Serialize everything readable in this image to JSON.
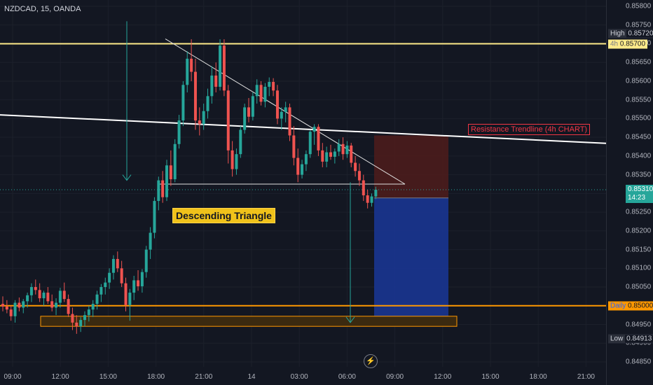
{
  "header": {
    "symbol": "NZDCAD, 15, OANDA"
  },
  "annotations": {
    "pattern_label": "Descending Triangle",
    "resistance_label": "Resistance Trendline (4h CHART)"
  },
  "price_labels": {
    "high_tag": "High",
    "high_value": "0.85720",
    "level_4h_tag": "4h",
    "level_4h_value": "0.85700",
    "current_value": "0.85310",
    "countdown": "14:23",
    "daily_tag": "Daily",
    "daily_value": "0.85000",
    "low_tag": "Low",
    "low_value": "0.84913"
  },
  "icons": {
    "replay": "lightning-icon"
  },
  "colors": {
    "background": "#131722",
    "up": "#26a69a",
    "down": "#ef5350",
    "yellow_level": "#ffeb8a",
    "orange_level": "#ff9800",
    "stop_zone": "#4b1c1c",
    "target_zone": "#1a3591"
  },
  "chart_data": {
    "type": "candlestick",
    "x_ticks": [
      "09:00",
      "12:00",
      "15:00",
      "18:00",
      "21:00",
      "14",
      "03:00",
      "06:00",
      "09:00",
      "12:00",
      "15:00",
      "18:00",
      "21:00"
    ],
    "y_ticks": [
      "0.85800",
      "0.85750",
      "0.85700",
      "0.85650",
      "0.85600",
      "0.85550",
      "0.85500",
      "0.85450",
      "0.85400",
      "0.85350",
      "0.85300",
      "0.85250",
      "0.85200",
      "0.85150",
      "0.85100",
      "0.85050",
      "0.85000",
      "0.84950",
      "0.84900",
      "0.84850"
    ],
    "ylim": [
      0.8482,
      0.8584
    ],
    "levels": [
      {
        "name": "4h",
        "price": 0.857,
        "color": "#ffeb8a"
      },
      {
        "name": "Daily",
        "price": 0.85,
        "color": "#ff9800"
      }
    ],
    "resistance_trendline": {
      "start": [
        0,
        0.8551
      ],
      "end": [
        888,
        0.85432
      ]
    },
    "triangle": {
      "apex": [
        236,
        0.85713
      ],
      "upper_end": [
        578,
        0.85325
      ],
      "base_start": [
        226,
        0.85325
      ],
      "base_end": [
        578,
        0.85325
      ]
    },
    "support_zone": {
      "x": [
        58,
        652
      ],
      "price": [
        0.84972,
        0.84945
      ]
    },
    "position": {
      "x": [
        534,
        640
      ],
      "entry": 0.85288,
      "stop": 0.85455,
      "target": 0.84955
    },
    "arrows": [
      {
        "x": 181,
        "from": 0.8576,
        "to": 0.85335,
        "color": "#26a69a"
      },
      {
        "x": 500,
        "from": 0.8533,
        "to": 0.84955,
        "color": "#26a69a"
      }
    ],
    "candles": [
      [
        0.85005,
        0.85025,
        0.84985,
        0.84998
      ],
      [
        0.84998,
        0.85015,
        0.8498,
        0.8499
      ],
      [
        0.8499,
        0.85,
        0.8496,
        0.84972
      ],
      [
        0.84972,
        0.85015,
        0.84955,
        0.85008
      ],
      [
        0.85008,
        0.85022,
        0.84985,
        0.84995
      ],
      [
        0.84995,
        0.85018,
        0.8498,
        0.85012
      ],
      [
        0.85012,
        0.85035,
        0.84995,
        0.85028
      ],
      [
        0.85028,
        0.8506,
        0.8501,
        0.8505
      ],
      [
        0.8505,
        0.8507,
        0.8503,
        0.85042
      ],
      [
        0.85042,
        0.8506,
        0.8501,
        0.8502
      ],
      [
        0.8502,
        0.8504,
        0.85,
        0.85035
      ],
      [
        0.85035,
        0.8505,
        0.85005,
        0.85012
      ],
      [
        0.85012,
        0.8503,
        0.84985,
        0.84995
      ],
      [
        0.84995,
        0.8502,
        0.84975,
        0.85008
      ],
      [
        0.85008,
        0.85048,
        0.84995,
        0.8504
      ],
      [
        0.8504,
        0.85062,
        0.8501,
        0.85018
      ],
      [
        0.85018,
        0.8503,
        0.8497,
        0.84978
      ],
      [
        0.84978,
        0.84995,
        0.84935,
        0.84955
      ],
      [
        0.84955,
        0.84975,
        0.84925,
        0.84945
      ],
      [
        0.84945,
        0.8497,
        0.8493,
        0.84962
      ],
      [
        0.84962,
        0.84985,
        0.84945,
        0.84975
      ],
      [
        0.84975,
        0.85,
        0.84958,
        0.8499
      ],
      [
        0.8499,
        0.85015,
        0.8497,
        0.85005
      ],
      [
        0.85005,
        0.8504,
        0.8499,
        0.8503
      ],
      [
        0.8503,
        0.85058,
        0.8501,
        0.8505
      ],
      [
        0.8505,
        0.85075,
        0.8503,
        0.85062
      ],
      [
        0.85062,
        0.851,
        0.85045,
        0.85088
      ],
      [
        0.85088,
        0.85135,
        0.8507,
        0.85125
      ],
      [
        0.85125,
        0.85145,
        0.8509,
        0.851
      ],
      [
        0.851,
        0.8512,
        0.8505,
        0.8506
      ],
      [
        0.8506,
        0.85075,
        0.84985,
        0.85002
      ],
      [
        0.85002,
        0.85045,
        0.8496,
        0.85035
      ],
      [
        0.85035,
        0.8508,
        0.85015,
        0.85068
      ],
      [
        0.85068,
        0.85095,
        0.8504,
        0.85052
      ],
      [
        0.85052,
        0.85098,
        0.85035,
        0.8509
      ],
      [
        0.8509,
        0.8516,
        0.85075,
        0.8515
      ],
      [
        0.8515,
        0.8521,
        0.85125,
        0.85195
      ],
      [
        0.85195,
        0.8529,
        0.8518,
        0.8528
      ],
      [
        0.8528,
        0.85345,
        0.85255,
        0.85335
      ],
      [
        0.85335,
        0.8536,
        0.85275,
        0.8529
      ],
      [
        0.8529,
        0.8539,
        0.8528,
        0.85375
      ],
      [
        0.85375,
        0.85415,
        0.8532,
        0.85338
      ],
      [
        0.85338,
        0.85445,
        0.8533,
        0.85432
      ],
      [
        0.85432,
        0.8551,
        0.8542,
        0.85495
      ],
      [
        0.85495,
        0.856,
        0.8548,
        0.8559
      ],
      [
        0.8559,
        0.8568,
        0.8557,
        0.8566
      ],
      [
        0.8566,
        0.85712,
        0.856,
        0.85625
      ],
      [
        0.85625,
        0.8566,
        0.8547,
        0.85495
      ],
      [
        0.85495,
        0.8553,
        0.85455,
        0.85485
      ],
      [
        0.85485,
        0.8554,
        0.8547,
        0.8552
      ],
      [
        0.8552,
        0.8558,
        0.855,
        0.8556
      ],
      [
        0.8556,
        0.8564,
        0.8554,
        0.85615
      ],
      [
        0.85615,
        0.8565,
        0.8557,
        0.85585
      ],
      [
        0.85585,
        0.85712,
        0.85575,
        0.85695
      ],
      [
        0.85695,
        0.85712,
        0.8556,
        0.85575
      ],
      [
        0.85575,
        0.8559,
        0.8538,
        0.85415
      ],
      [
        0.85415,
        0.8544,
        0.85345,
        0.85365
      ],
      [
        0.85365,
        0.8542,
        0.8535,
        0.85405
      ],
      [
        0.85405,
        0.8548,
        0.85395,
        0.8547
      ],
      [
        0.8547,
        0.8554,
        0.8546,
        0.8553
      ],
      [
        0.8553,
        0.85555,
        0.8549,
        0.85505
      ],
      [
        0.85505,
        0.8557,
        0.85495,
        0.8556
      ],
      [
        0.8556,
        0.85605,
        0.8554,
        0.8559
      ],
      [
        0.8559,
        0.856,
        0.85535,
        0.85545
      ],
      [
        0.85545,
        0.85595,
        0.8553,
        0.85585
      ],
      [
        0.85585,
        0.8561,
        0.8556,
        0.85598
      ],
      [
        0.85598,
        0.85608,
        0.8556,
        0.85575
      ],
      [
        0.85575,
        0.8559,
        0.85485,
        0.855
      ],
      [
        0.855,
        0.8553,
        0.8547,
        0.85518
      ],
      [
        0.85518,
        0.85545,
        0.8549,
        0.8553
      ],
      [
        0.8553,
        0.8554,
        0.8544,
        0.85455
      ],
      [
        0.85455,
        0.8548,
        0.85375,
        0.85395
      ],
      [
        0.85395,
        0.8542,
        0.8533,
        0.8535
      ],
      [
        0.8535,
        0.8539,
        0.8534,
        0.85378
      ],
      [
        0.85378,
        0.85415,
        0.8536,
        0.85405
      ],
      [
        0.85405,
        0.8547,
        0.85395,
        0.85465
      ],
      [
        0.85465,
        0.85485,
        0.8543,
        0.85478
      ],
      [
        0.85478,
        0.85485,
        0.854,
        0.85415
      ],
      [
        0.85415,
        0.85435,
        0.8537,
        0.85385
      ],
      [
        0.85385,
        0.85425,
        0.8537,
        0.8541
      ],
      [
        0.8541,
        0.8543,
        0.8539,
        0.85398
      ],
      [
        0.85398,
        0.8542,
        0.8538,
        0.85412
      ],
      [
        0.85412,
        0.85445,
        0.854,
        0.85432
      ],
      [
        0.85432,
        0.8545,
        0.8539,
        0.85405
      ],
      [
        0.85405,
        0.8544,
        0.85395,
        0.85428
      ],
      [
        0.85428,
        0.85435,
        0.8537,
        0.85382
      ],
      [
        0.85382,
        0.854,
        0.85345,
        0.8536
      ],
      [
        0.8536,
        0.8538,
        0.8532,
        0.85335
      ],
      [
        0.85335,
        0.8535,
        0.8528,
        0.85295
      ],
      [
        0.85295,
        0.8531,
        0.8526,
        0.85275
      ],
      [
        0.85275,
        0.853,
        0.85265,
        0.85292
      ],
      [
        0.85292,
        0.85318,
        0.85285,
        0.8531
      ]
    ]
  }
}
